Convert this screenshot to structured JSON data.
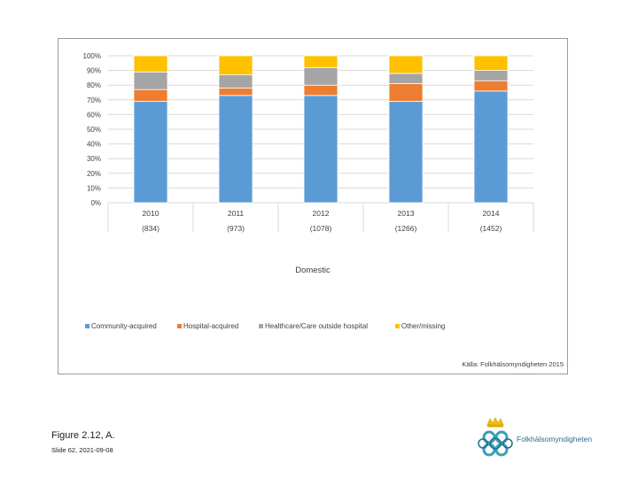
{
  "chart_data": {
    "type": "bar",
    "stacked": true,
    "categories": [
      "2010",
      "2011",
      "2012",
      "2013",
      "2014"
    ],
    "category_counts": [
      "(834)",
      "(973)",
      "(1078)",
      "(1266)",
      "(1452)"
    ],
    "xlabel": "Domestic",
    "ylabel": "",
    "ylim": [
      0,
      100
    ],
    "yticks": [
      "0%",
      "10%",
      "20%",
      "30%",
      "40%",
      "50%",
      "60%",
      "70%",
      "80%",
      "90%",
      "100%"
    ],
    "grid": true,
    "legend_position": "bottom",
    "series": [
      {
        "name": "Community-acquired",
        "color": "#5b9bd5",
        "values": [
          69,
          73,
          73,
          69,
          76
        ]
      },
      {
        "name": "Hospital-acquired",
        "color": "#ed7d31",
        "values": [
          8,
          5,
          7,
          12,
          7
        ]
      },
      {
        "name": "Healthcare/Care outside hospital",
        "color": "#a5a5a5",
        "values": [
          12,
          9,
          12,
          7,
          7
        ]
      },
      {
        "name": "Other/missing",
        "color": "#ffc000",
        "values": [
          11,
          13,
          8,
          12,
          10
        ]
      }
    ]
  },
  "source_note": "Källa: Folkhälsomyndigheten 2015",
  "figure_title": "Figure 2.12, A.",
  "slide_ref": "Slide 62, 2021-09-08",
  "logo_text": "Folkhälsomyndigheten"
}
